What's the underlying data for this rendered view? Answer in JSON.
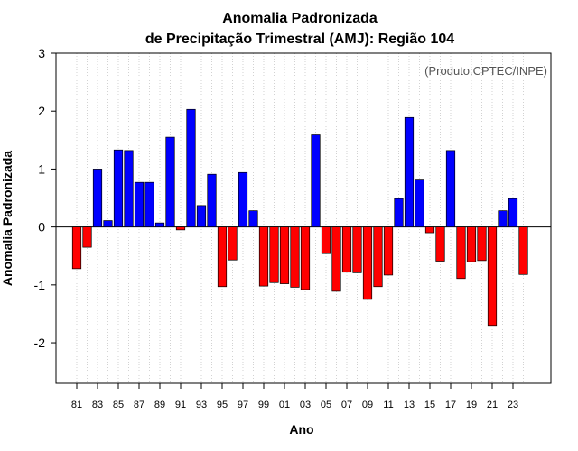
{
  "chart_data": {
    "type": "bar",
    "title_line1": "Anomalia Padronizada",
    "title_line2": "de Precipitação Trimestral (AMJ): Região 104",
    "xlabel": "Ano",
    "ylabel": "Anomalia Padronizada",
    "credit": "(Produto:CPTEC/INPE)",
    "ylim": [
      -2.7,
      3.0
    ],
    "yticks": [
      -2,
      -1,
      0,
      1,
      2,
      3
    ],
    "positive_color": "#0000ff",
    "negative_color": "#ff0000",
    "categories": [
      "81",
      "82",
      "83",
      "84",
      "85",
      "86",
      "87",
      "88",
      "89",
      "90",
      "91",
      "92",
      "93",
      "94",
      "95",
      "96",
      "97",
      "98",
      "99",
      "00",
      "01",
      "02",
      "03",
      "04",
      "05",
      "06",
      "07",
      "08",
      "09",
      "10",
      "11",
      "12",
      "13",
      "14",
      "15",
      "16",
      "17",
      "18",
      "19",
      "20",
      "21",
      "22",
      "23",
      "24"
    ],
    "xtick_labels": [
      "81",
      "83",
      "85",
      "87",
      "89",
      "91",
      "93",
      "95",
      "97",
      "99",
      "01",
      "03",
      "05",
      "07",
      "09",
      "11",
      "13",
      "15",
      "17",
      "19",
      "21",
      "23"
    ],
    "values": [
      -0.72,
      -0.35,
      1.0,
      0.11,
      1.33,
      1.32,
      0.77,
      0.77,
      0.07,
      1.55,
      -0.05,
      2.03,
      0.37,
      0.91,
      -1.03,
      -0.57,
      0.94,
      0.28,
      -1.02,
      -0.96,
      -0.98,
      -1.04,
      -1.08,
      1.59,
      -0.46,
      -1.11,
      -0.78,
      -0.79,
      -1.25,
      -1.03,
      -0.83,
      0.49,
      1.89,
      0.81,
      -0.1,
      -0.59,
      1.32,
      -0.89,
      -0.6,
      -0.58,
      -1.7,
      0.28,
      0.49,
      -0.82
    ]
  }
}
